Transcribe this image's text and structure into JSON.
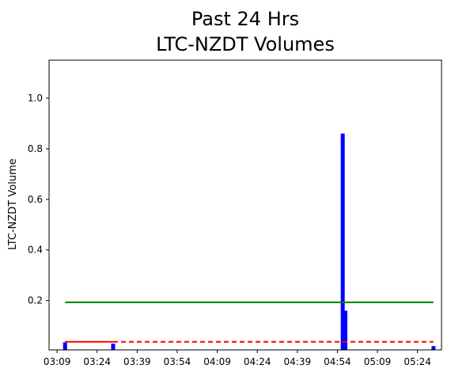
{
  "chart_data": {
    "type": "bar",
    "title_line1": "Past 24 Hrs",
    "title_line2": "LTC-NZDT Volumes",
    "xlabel": "",
    "ylabel": "LTC-NZDT Volume",
    "x_axis_kind": "time",
    "xlim": [
      "03:06",
      "05:33"
    ],
    "ylim": [
      0.005,
      1.15
    ],
    "x_ticks": [
      "03:09",
      "03:24",
      "03:39",
      "03:54",
      "04:09",
      "04:24",
      "04:39",
      "04:54",
      "05:09",
      "05:24"
    ],
    "y_ticks": [
      0.2,
      0.4,
      0.6,
      0.8,
      1.0
    ],
    "y_tick_labels": [
      "0.2",
      "0.4",
      "0.6",
      "0.8",
      "1.0"
    ],
    "grid": false,
    "legend": "none",
    "bars": [
      {
        "time": "03:12",
        "value": 0.035
      },
      {
        "time": "03:30",
        "value": 0.03
      },
      {
        "time": "04:56",
        "value": 0.86
      },
      {
        "time": "04:57",
        "value": 0.16
      },
      {
        "time": "05:30",
        "value": 0.02
      }
    ],
    "lines": [
      {
        "kind": "solid",
        "color": "#008000",
        "x_start": "03:12",
        "x_end": "05:30",
        "value": 0.193
      },
      {
        "kind": "solid",
        "color": "#ff0000",
        "x_start": "03:12",
        "x_end": "03:30",
        "value": 0.037
      },
      {
        "kind": "dashed",
        "color": "#ff0000",
        "x_start": "03:30",
        "x_end": "05:30",
        "value": 0.037
      }
    ],
    "colors": {
      "bar": "#0000ff",
      "axes": "#000000",
      "text": "#000000"
    }
  }
}
